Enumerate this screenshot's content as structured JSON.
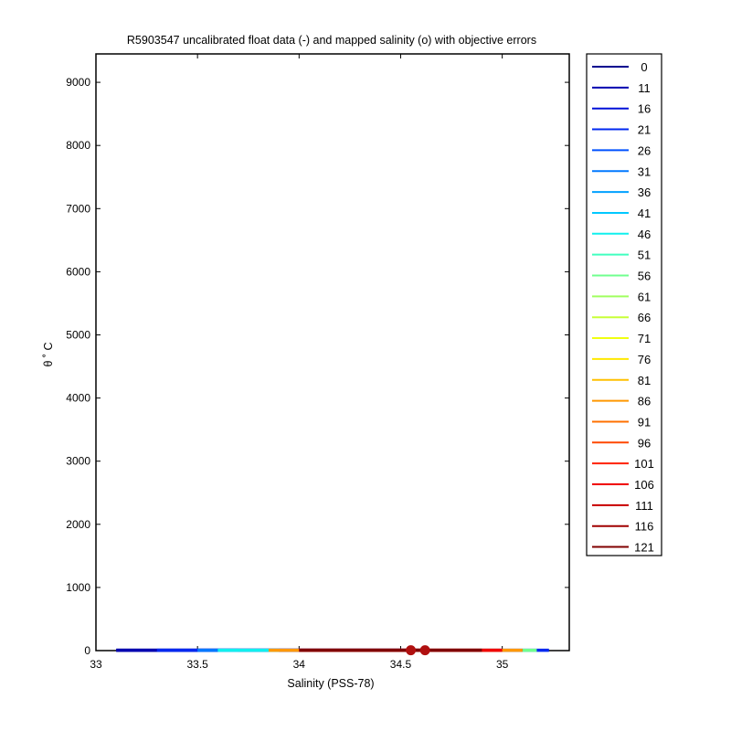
{
  "chart_data": {
    "type": "line",
    "title": "R5903547 uncalibrated float data (-) and mapped salinity (o) with objective errors",
    "xlabel": "Salinity (PSS-78)",
    "ylabel": "θ ˚ C",
    "xlim": [
      33,
      35.33
    ],
    "ylim": [
      0,
      9450
    ],
    "xticks": [
      33,
      33.5,
      34,
      34.5,
      35
    ],
    "xtick_labels": [
      "33",
      "33.5",
      "34",
      "34.5",
      "35"
    ],
    "yticks": [
      0,
      1000,
      2000,
      3000,
      4000,
      5000,
      6000,
      7000,
      8000,
      9000
    ],
    "ytick_labels": [
      "0",
      "1000",
      "2000",
      "3000",
      "4000",
      "5000",
      "6000",
      "7000",
      "8000",
      "9000"
    ],
    "grid": false,
    "legend_position": "outside-right",
    "legend": [
      "0",
      "11",
      "16",
      "21",
      "26",
      "31",
      "36",
      "41",
      "46",
      "51",
      "56",
      "61",
      "66",
      "71",
      "76",
      "81",
      "86",
      "91",
      "96",
      "101",
      "106",
      "111",
      "116",
      "121"
    ],
    "legend_colors": [
      "#00008f",
      "#0000b0",
      "#0010d8",
      "#0028f0",
      "#0050ff",
      "#0078ff",
      "#00a0ff",
      "#00c8ff",
      "#10f0ee",
      "#40ffbf",
      "#70ff8f",
      "#a0ff60",
      "#c8ff38",
      "#f0ff10",
      "#ffe800",
      "#ffc000",
      "#ff9800",
      "#ff7000",
      "#ff4800",
      "#ff2000",
      "#f00000",
      "#c80000",
      "#a00000",
      "#800000"
    ],
    "series": [
      {
        "name": "0",
        "color": "#00008f",
        "x": [
          33.1,
          34.6
        ],
        "y": [
          5,
          5
        ]
      },
      {
        "name": "11",
        "color": "#0000b0",
        "x": [
          33.1,
          34.5
        ],
        "y": [
          5,
          5
        ]
      },
      {
        "name": "21",
        "color": "#0028f0",
        "x": [
          33.3,
          35.23
        ],
        "y": [
          5,
          5
        ]
      },
      {
        "name": "31",
        "color": "#0078ff",
        "x": [
          33.5,
          33.7
        ],
        "y": [
          5,
          5
        ]
      },
      {
        "name": "46",
        "color": "#10f0ee",
        "x": [
          33.6,
          33.9
        ],
        "y": [
          5,
          5
        ]
      },
      {
        "name": "56",
        "color": "#70ff8f",
        "x": [
          35.1,
          35.17
        ],
        "y": [
          5,
          5
        ]
      },
      {
        "name": "86",
        "color": "#ff9800",
        "x": [
          33.85,
          35.1
        ],
        "y": [
          5,
          5
        ]
      },
      {
        "name": "106",
        "color": "#f00000",
        "x": [
          34.0,
          35.0
        ],
        "y": [
          5,
          5
        ]
      },
      {
        "name": "121",
        "color": "#800000",
        "x": [
          34.0,
          34.9
        ],
        "y": [
          5,
          5
        ]
      }
    ],
    "mapped_points": {
      "color": "#b01010",
      "x": [
        34.55,
        34.62
      ],
      "y": [
        5,
        5
      ]
    }
  }
}
